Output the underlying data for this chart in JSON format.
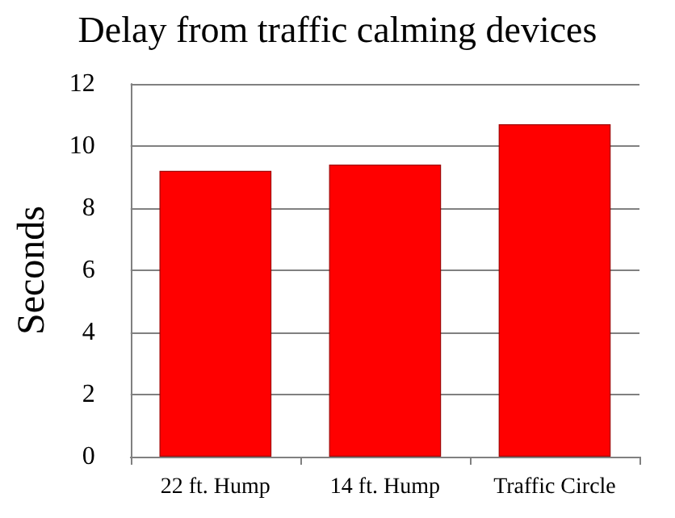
{
  "chart_data": {
    "type": "bar",
    "title": "Delay from traffic calming devices",
    "ylabel": "Seconds",
    "categories": [
      "22 ft. Hump",
      "14 ft. Hump",
      "Traffic Circle"
    ],
    "values": [
      9.2,
      9.4,
      10.7
    ],
    "color": "#ff0000",
    "ylim": [
      0,
      12
    ],
    "yticks": [
      0,
      2,
      4,
      6,
      8,
      10,
      12
    ],
    "grid": "y"
  }
}
